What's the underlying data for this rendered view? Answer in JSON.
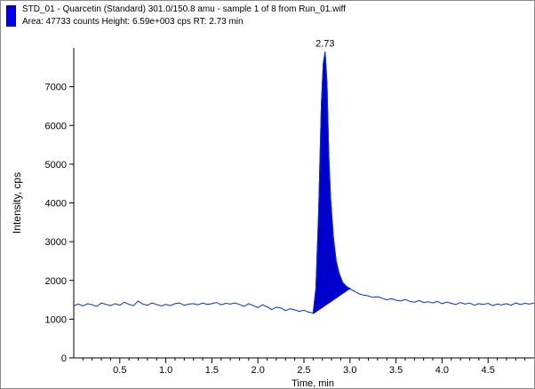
{
  "header": {
    "line1": "STD_01 - Quarcetin (Standard) 301.0/150.8 amu - sample  1 of 8  from Run_01.wiff",
    "line2": "Area: 47733 counts  Height: 6.59e+003 cps  RT: 2.73 min"
  },
  "colors": {
    "trace": "#0033cc",
    "peak_fill": "#0000cc",
    "legend": "#0000ee"
  },
  "chart_data": {
    "type": "line",
    "xlabel": "Time, min",
    "ylabel": "Intensity, cps",
    "xlim": [
      0,
      5.0
    ],
    "ylim": [
      0,
      8000
    ],
    "xticks": [
      0.5,
      1.0,
      1.5,
      2.0,
      2.5,
      3.0,
      3.5,
      4.0,
      4.5
    ],
    "xtick_labels": [
      "0.5",
      "1.0",
      "1.5",
      "2.0",
      "2.5",
      "3.0",
      "3.5",
      "4.0",
      "4.5"
    ],
    "yticks": [
      0,
      1000,
      2000,
      3000,
      4000,
      5000,
      6000,
      7000
    ],
    "ytick_labels": [
      "0",
      "1000",
      "2000",
      "3000",
      "4000",
      "5000",
      "6000",
      "7000"
    ],
    "peak_label": "2.73",
    "peak": {
      "rt": 2.73,
      "start": 2.6,
      "end": 3.0,
      "baseline_start": 1150,
      "baseline_end": 1800
    },
    "series": [
      {
        "x": [
          0.0,
          0.05,
          0.1,
          0.15,
          0.2,
          0.25,
          0.3,
          0.35,
          0.4,
          0.45,
          0.5,
          0.55,
          0.6,
          0.65,
          0.7,
          0.75,
          0.8,
          0.85,
          0.9,
          0.95,
          1.0,
          1.05,
          1.1,
          1.15,
          1.2,
          1.25,
          1.3,
          1.35,
          1.4,
          1.45,
          1.5,
          1.55,
          1.6,
          1.65,
          1.7,
          1.75,
          1.8,
          1.85,
          1.9,
          1.95,
          2.0,
          2.05,
          2.1,
          2.15,
          2.2,
          2.25,
          2.3,
          2.35,
          2.4,
          2.45,
          2.5,
          2.55,
          2.6,
          2.63,
          2.66,
          2.69,
          2.71,
          2.73,
          2.75,
          2.77,
          2.79,
          2.82,
          2.85,
          2.88,
          2.92,
          2.96,
          3.0,
          3.05,
          3.1,
          3.15,
          3.2,
          3.25,
          3.3,
          3.35,
          3.4,
          3.45,
          3.5,
          3.55,
          3.6,
          3.65,
          3.7,
          3.75,
          3.8,
          3.85,
          3.9,
          3.95,
          4.0,
          4.05,
          4.1,
          4.15,
          4.2,
          4.25,
          4.3,
          4.35,
          4.4,
          4.45,
          4.5,
          4.55,
          4.6,
          4.65,
          4.7,
          4.75,
          4.8,
          4.85,
          4.9,
          4.95,
          5.0
        ],
        "y": [
          1350,
          1390,
          1340,
          1400,
          1370,
          1330,
          1420,
          1380,
          1350,
          1400,
          1360,
          1440,
          1380,
          1350,
          1470,
          1390,
          1360,
          1420,
          1380,
          1340,
          1380,
          1350,
          1400,
          1420,
          1360,
          1390,
          1400,
          1370,
          1420,
          1380,
          1400,
          1430,
          1370,
          1410,
          1390,
          1420,
          1380,
          1330,
          1400,
          1350,
          1300,
          1370,
          1320,
          1250,
          1310,
          1290,
          1220,
          1270,
          1240,
          1200,
          1230,
          1180,
          1160,
          1800,
          3800,
          6600,
          7600,
          7900,
          7100,
          5200,
          4100,
          3100,
          2500,
          2200,
          1950,
          1850,
          1780,
          1720,
          1650,
          1620,
          1600,
          1560,
          1580,
          1540,
          1500,
          1530,
          1490,
          1470,
          1510,
          1460,
          1440,
          1480,
          1430,
          1450,
          1420,
          1460,
          1400,
          1440,
          1410,
          1380,
          1430,
          1390,
          1420,
          1360,
          1400,
          1380,
          1410,
          1350,
          1390,
          1370,
          1400,
          1360,
          1420,
          1380,
          1410,
          1390,
          1420
        ]
      }
    ]
  }
}
